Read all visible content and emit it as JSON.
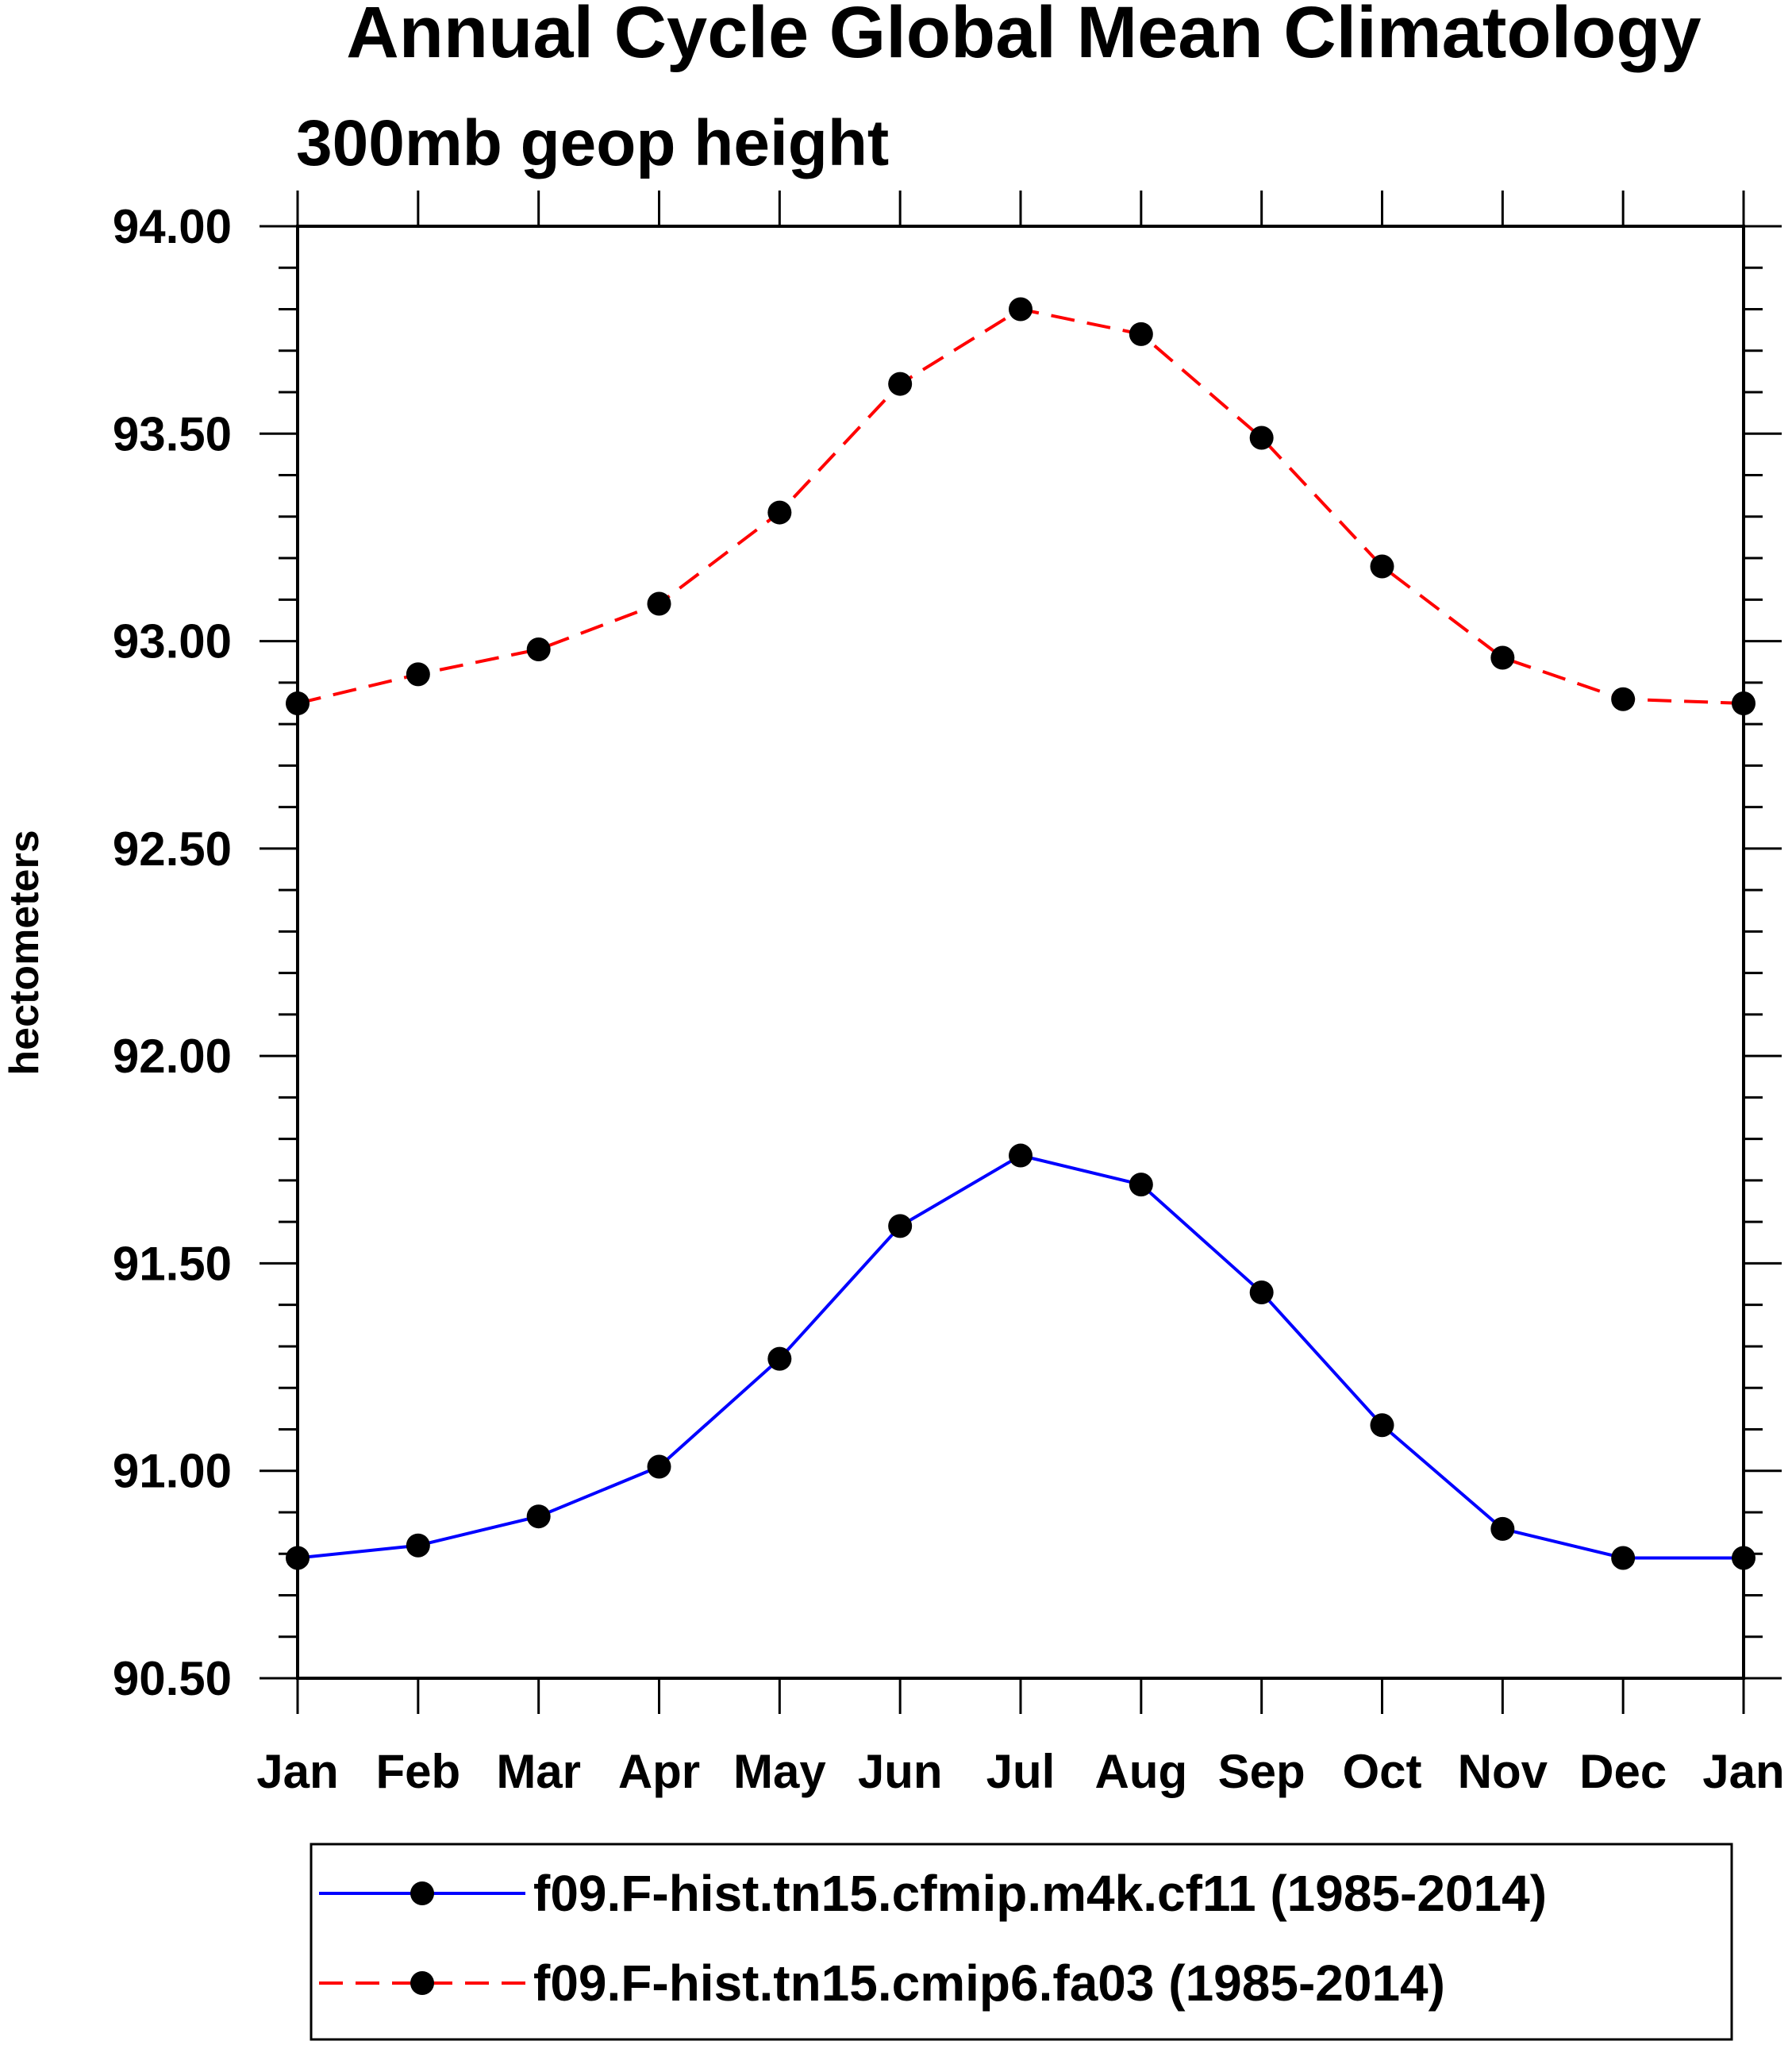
{
  "chart_data": {
    "type": "line",
    "title": "Annual Cycle Global Mean Climatology",
    "subtitle": "300mb geop height",
    "xlabel": "",
    "ylabel": "hectometers",
    "categories": [
      "Jan",
      "Feb",
      "Mar",
      "Apr",
      "May",
      "Jun",
      "Jul",
      "Aug",
      "Sep",
      "Oct",
      "Nov",
      "Dec",
      "Jan"
    ],
    "ylim": [
      90.5,
      94.0
    ],
    "yticks": [
      "94.00",
      "93.50",
      "93.00",
      "92.50",
      "92.00",
      "91.50",
      "91.00",
      "90.50"
    ],
    "ytick_values": [
      94.0,
      93.5,
      93.0,
      92.5,
      92.0,
      91.5,
      91.0,
      90.5
    ],
    "grid": false,
    "legend_position": "bottom",
    "series": [
      {
        "name": "f09.F-hist.tn15.cfmip.m4k.cf11 (1985-2014)",
        "color": "#0000ff",
        "line_style": "solid",
        "marker": "filled-circle",
        "values": [
          90.79,
          90.82,
          90.89,
          91.01,
          91.27,
          91.59,
          91.76,
          91.69,
          91.43,
          91.11,
          90.86,
          90.79,
          90.79
        ]
      },
      {
        "name": "f09.F-hist.tn15.cmip6.fa03 (1985-2014)",
        "color": "#ff0000",
        "line_style": "dashed",
        "marker": "filled-circle",
        "values": [
          92.85,
          92.92,
          92.98,
          93.09,
          93.31,
          93.62,
          93.8,
          93.74,
          93.49,
          93.18,
          92.96,
          92.86,
          92.85
        ]
      }
    ]
  }
}
